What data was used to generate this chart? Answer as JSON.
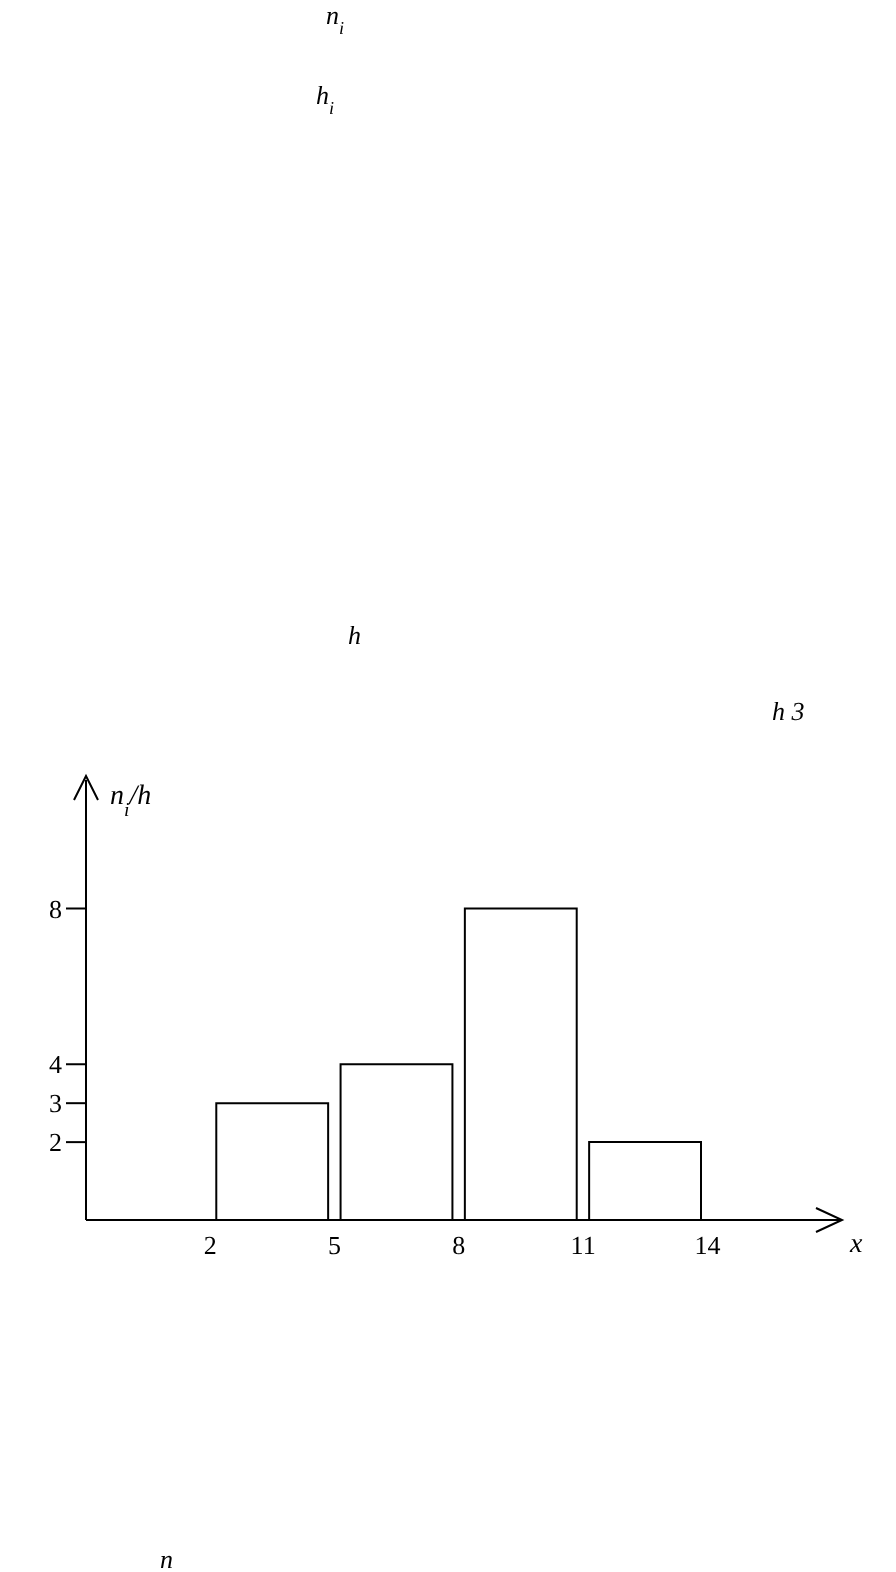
{
  "chart_data": {
    "type": "histogram",
    "ylabel": "n$_{i}$/h",
    "xlabel": "x",
    "bins": [
      2,
      5,
      8,
      11,
      14
    ],
    "values": [
      3,
      4,
      8,
      2
    ],
    "color": "#ffffff",
    "xlim": [
      -1,
      17.2
    ],
    "ylim": [
      0,
      11.3
    ],
    "xticks": [
      2,
      5,
      8,
      11,
      14
    ],
    "yticks": [
      2,
      3,
      4,
      8
    ],
    "annotations": [
      "n$_{i}$",
      "h$_{i}$",
      "h",
      "h 3",
      "n"
    ]
  }
}
